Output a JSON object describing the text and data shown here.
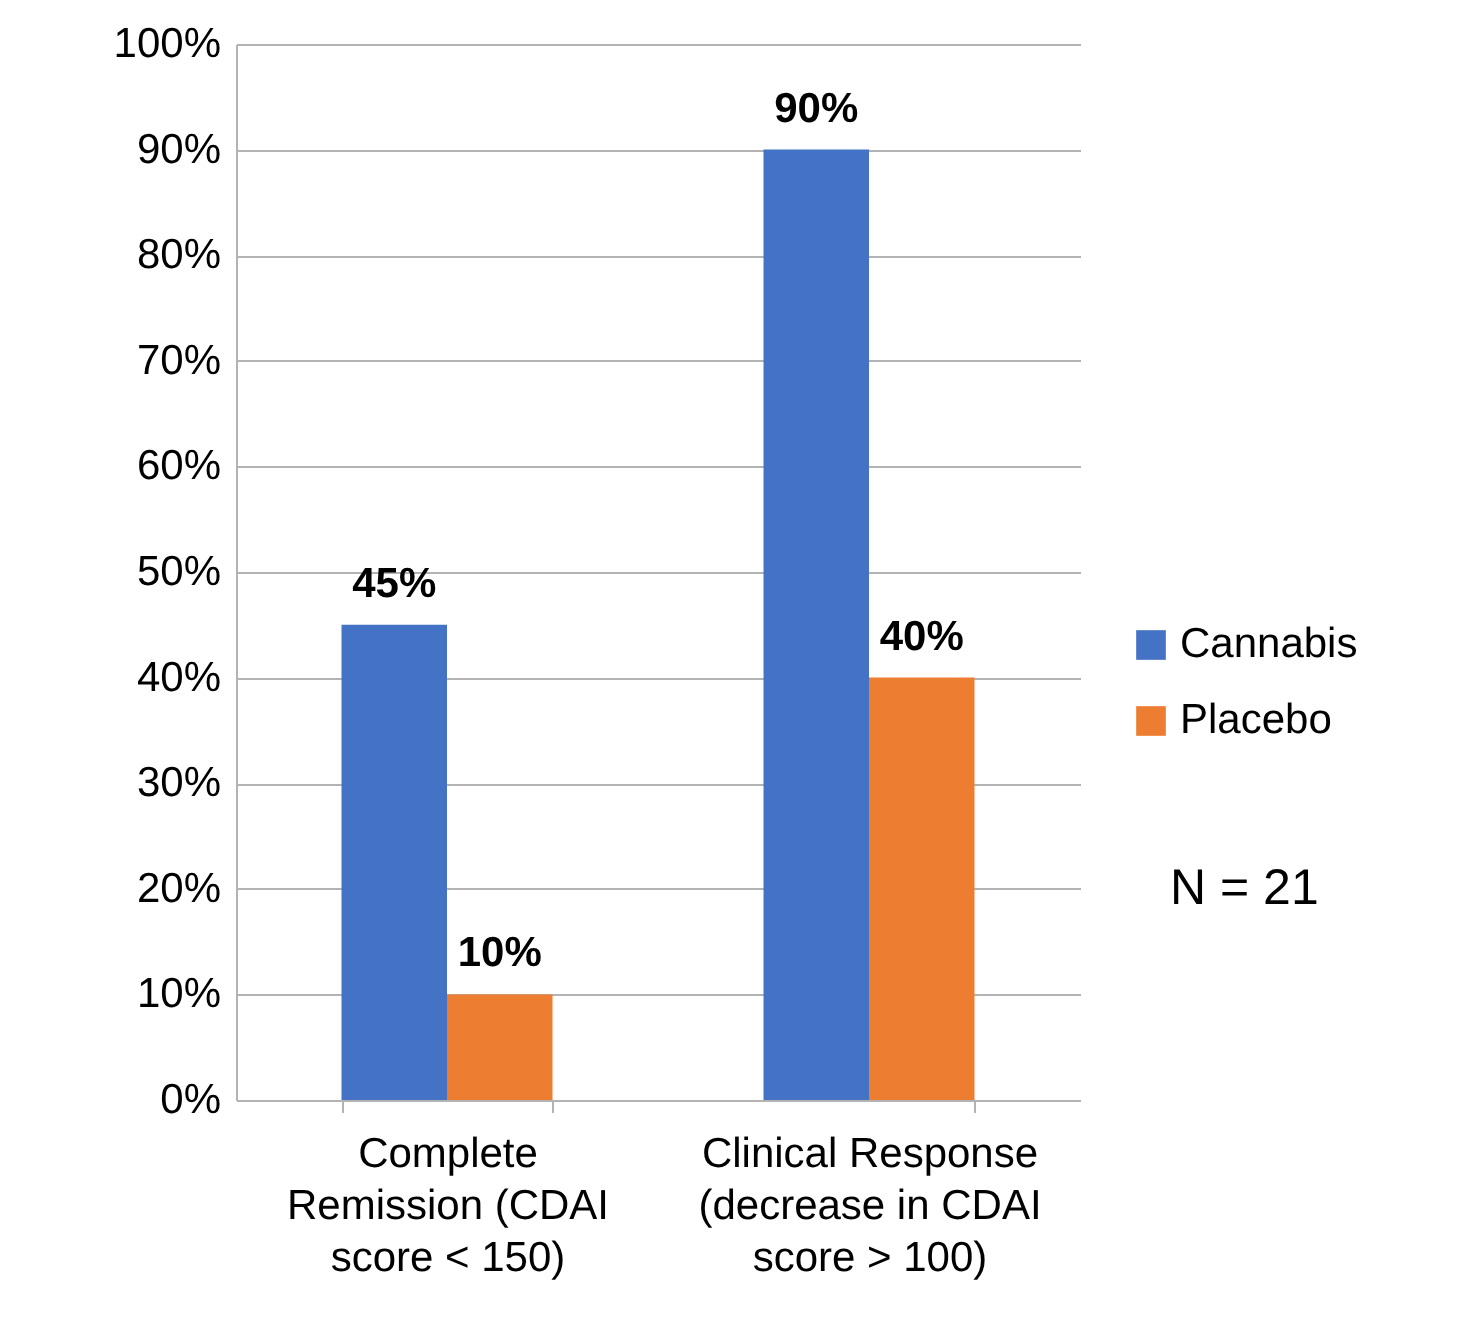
{
  "chart_data": {
    "type": "bar",
    "categories": [
      "Complete Remission (CDAI score < 150)",
      "Clinical Response (decrease in CDAI score > 100)"
    ],
    "series": [
      {
        "name": "Cannabis",
        "color": "#4472c4",
        "values": [
          45,
          90
        ],
        "value_labels": [
          "45%",
          "90%"
        ]
      },
      {
        "name": "Placebo",
        "color": "#ed7d31",
        "values": [
          10,
          40
        ],
        "value_labels": [
          "10%",
          "40%"
        ]
      }
    ],
    "ylim": [
      0,
      100
    ],
    "yticks": [
      {
        "value": 0,
        "label": "0%"
      },
      {
        "value": 10,
        "label": "10%"
      },
      {
        "value": 20,
        "label": "20%"
      },
      {
        "value": 30,
        "label": "30%"
      },
      {
        "value": 40,
        "label": "40%"
      },
      {
        "value": 50,
        "label": "50%"
      },
      {
        "value": 60,
        "label": "60%"
      },
      {
        "value": 70,
        "label": "70%"
      },
      {
        "value": 80,
        "label": "80%"
      },
      {
        "value": 90,
        "label": "90%"
      },
      {
        "value": 100,
        "label": "100%"
      }
    ],
    "grid": "y",
    "legend": "right",
    "annotations": [
      "N = 21"
    ]
  }
}
